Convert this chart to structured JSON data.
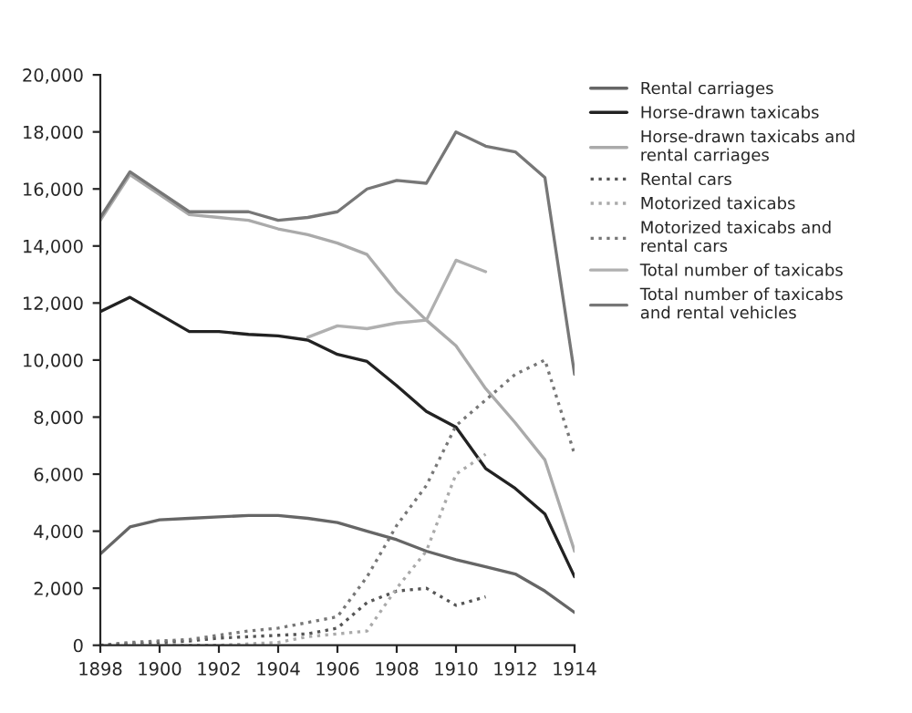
{
  "chart_data": {
    "type": "line",
    "x": [
      1898,
      1899,
      1900,
      1901,
      1902,
      1903,
      1904,
      1905,
      1906,
      1907,
      1908,
      1909,
      1910,
      1911,
      1912,
      1913,
      1914
    ],
    "xlim": [
      1898,
      1914
    ],
    "xticks": [
      1898,
      1900,
      1902,
      1904,
      1906,
      1908,
      1910,
      1912,
      1914
    ],
    "ylim": [
      0,
      20000
    ],
    "yticks": [
      {
        "value": 0,
        "label": "0"
      },
      {
        "value": 2000,
        "label": "2,000"
      },
      {
        "value": 4000,
        "label": "4,000"
      },
      {
        "value": 6000,
        "label": "6,000"
      },
      {
        "value": 8000,
        "label": "8,000"
      },
      {
        "value": 10000,
        "label": "10,000"
      },
      {
        "value": 12000,
        "label": "12,000"
      },
      {
        "value": 14000,
        "label": "14,000"
      },
      {
        "value": 16000,
        "label": "16,000"
      },
      {
        "value": 18000,
        "label": "18,000"
      },
      {
        "value": 20000,
        "label": "20,000"
      }
    ],
    "grid": false,
    "legend": "right",
    "series": [
      {
        "name": "Rental carriages",
        "color": "#666666",
        "line_style": "solid",
        "values": [
          3200,
          4150,
          4400,
          4450,
          4500,
          4550,
          4550,
          4450,
          4300,
          4000,
          3700,
          3300,
          3000,
          2750,
          2500,
          1900,
          1150
        ]
      },
      {
        "name": "Horse-drawn taxicabs",
        "color": "#222222",
        "line_style": "solid",
        "values": [
          11700,
          12200,
          11600,
          11000,
          11000,
          10900,
          10850,
          10700,
          10200,
          9950,
          9100,
          8200,
          7650,
          6200,
          5500,
          4600,
          2400
        ]
      },
      {
        "name": "Horse-drawn taxicabs and rental carriages",
        "color": "#aaaaaa",
        "line_style": "solid",
        "values": [
          14900,
          16500,
          15800,
          15100,
          15000,
          14900,
          14600,
          14400,
          14100,
          13700,
          12400,
          11400,
          10500,
          9000,
          7800,
          6500,
          3300
        ]
      },
      {
        "name": "Rental cars",
        "color": "#555555",
        "line_style": "dotted",
        "values": [
          0,
          50,
          100,
          150,
          250,
          300,
          350,
          400,
          600,
          1500,
          1900,
          2000,
          1400,
          1700,
          null,
          null,
          null
        ]
      },
      {
        "name": "Motorized taxicabs",
        "color": "#aaaaaa",
        "line_style": "dotted",
        "values": [
          0,
          0,
          0,
          0,
          0,
          50,
          100,
          300,
          400,
          500,
          2000,
          3300,
          6000,
          6700,
          null,
          null,
          null
        ]
      },
      {
        "name": "Motorized taxicabs and rental cars",
        "color": "#777777",
        "line_style": "dotted",
        "values": [
          0,
          100,
          150,
          200,
          350,
          500,
          600,
          800,
          1000,
          2400,
          4200,
          5600,
          7700,
          8600,
          9500,
          10000,
          6700
        ]
      },
      {
        "name": "Total number of taxicabs",
        "color": "#b0b0b0",
        "line_style": "solid",
        "values": [
          null,
          null,
          null,
          null,
          null,
          null,
          null,
          10800,
          11200,
          11100,
          11300,
          11400,
          13500,
          13100,
          null,
          null,
          null
        ]
      },
      {
        "name": "Total number of taxicabs and rental vehicles",
        "color": "#777777",
        "line_style": "solid",
        "values": [
          15000,
          16600,
          15900,
          15200,
          15200,
          15200,
          14900,
          15000,
          15200,
          16000,
          16300,
          16200,
          18000,
          17500,
          17300,
          16400,
          9500
        ]
      }
    ]
  }
}
